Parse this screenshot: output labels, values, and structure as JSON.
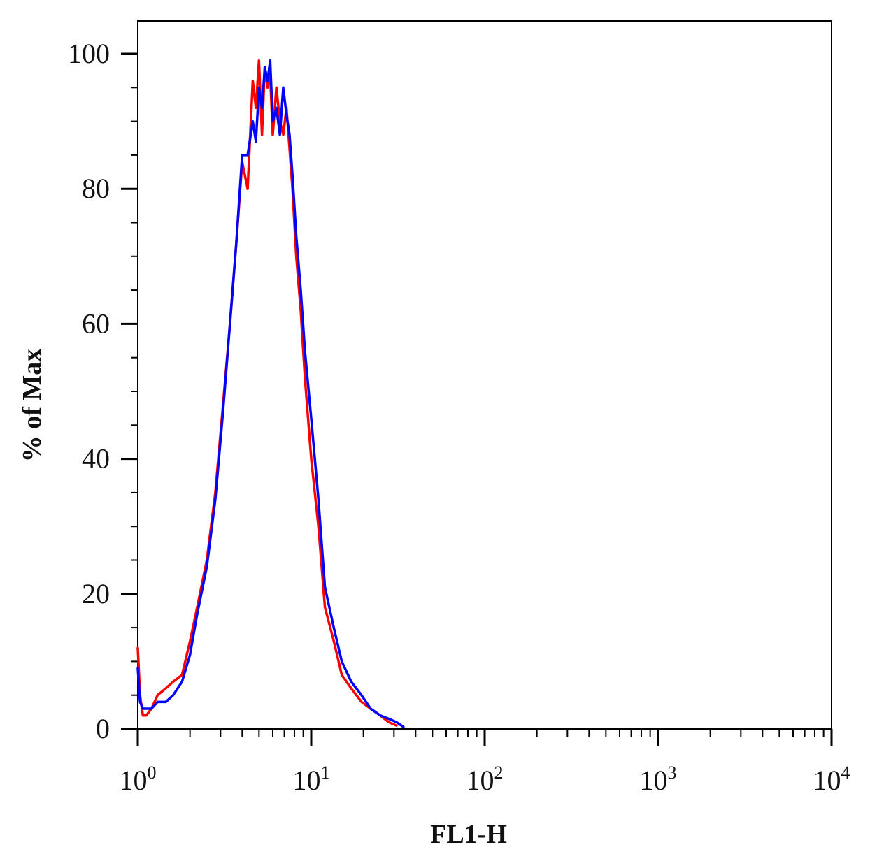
{
  "chart_data": {
    "type": "line",
    "title": "",
    "xlabel": "FL1-H",
    "ylabel": "% of Max",
    "x_scale": "log",
    "xlim": [
      1,
      10000
    ],
    "ylim": [
      0,
      100
    ],
    "x_ticks": [
      {
        "base": "10",
        "exp": "0"
      },
      {
        "base": "10",
        "exp": "1"
      },
      {
        "base": "10",
        "exp": "2"
      },
      {
        "base": "10",
        "exp": "3"
      },
      {
        "base": "10",
        "exp": "4"
      }
    ],
    "y_ticks": [
      "0",
      "20",
      "40",
      "60",
      "80",
      "100"
    ],
    "grid": false,
    "legend": "none",
    "series": [
      {
        "color": "#ff0000",
        "x": [
          1.0,
          1.03,
          1.07,
          1.12,
          1.2,
          1.3,
          1.45,
          1.6,
          1.8,
          2.0,
          2.2,
          2.5,
          2.8,
          3.1,
          3.4,
          3.7,
          4.0,
          4.3,
          4.6,
          4.8,
          5.0,
          5.2,
          5.4,
          5.6,
          5.8,
          6.0,
          6.3,
          6.6,
          6.9,
          7.2,
          7.5,
          7.8,
          8.2,
          8.7,
          9.2,
          10.0,
          11.0,
          12.0,
          13.5,
          15.0,
          17.0,
          19.5,
          22.0,
          25.0,
          28.0,
          31.0
        ],
        "y": [
          12,
          5,
          2,
          2,
          3,
          5,
          6,
          7,
          8,
          13,
          18,
          25,
          35,
          48,
          60,
          72,
          84,
          80,
          96,
          92,
          99,
          88,
          98,
          95,
          97,
          88,
          95,
          90,
          88,
          92,
          86,
          80,
          70,
          62,
          52,
          40,
          30,
          18,
          13,
          8,
          6,
          4,
          3,
          2,
          1,
          0.5
        ]
      },
      {
        "color": "#0000ff",
        "x": [
          1.0,
          1.03,
          1.07,
          1.12,
          1.2,
          1.3,
          1.45,
          1.6,
          1.8,
          2.0,
          2.2,
          2.5,
          2.8,
          3.1,
          3.4,
          3.7,
          4.0,
          4.3,
          4.6,
          4.8,
          5.0,
          5.2,
          5.4,
          5.6,
          5.8,
          6.0,
          6.3,
          6.6,
          6.9,
          7.2,
          7.5,
          7.8,
          8.2,
          8.7,
          9.2,
          10.0,
          11.0,
          12.0,
          13.5,
          15.0,
          17.0,
          19.5,
          22.0,
          25.0,
          28.0,
          31.0,
          34.0
        ],
        "y": [
          9,
          4,
          3,
          3,
          3,
          4,
          4,
          5,
          7,
          11,
          17,
          24,
          34,
          47,
          60,
          72,
          85,
          85,
          90,
          87,
          95,
          92,
          98,
          96,
          99,
          90,
          92,
          88,
          95,
          91,
          88,
          82,
          73,
          65,
          56,
          46,
          34,
          21,
          15,
          10,
          7,
          5,
          3,
          2,
          1.5,
          1,
          0.3
        ]
      }
    ]
  }
}
